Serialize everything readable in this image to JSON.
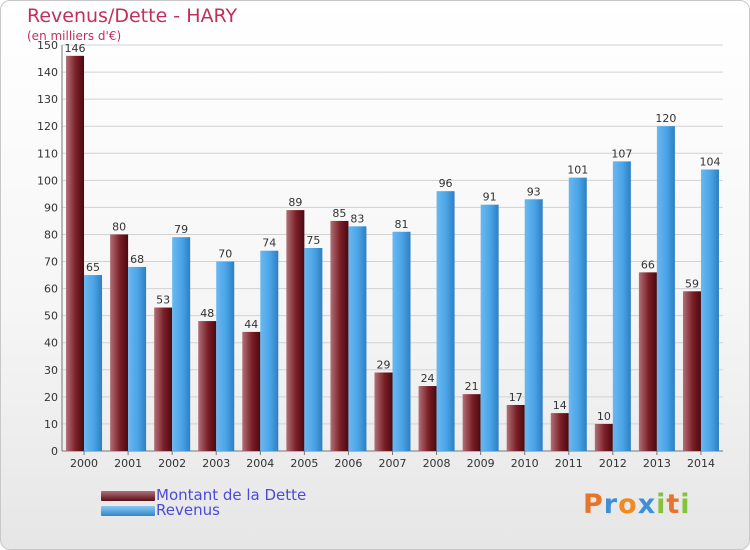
{
  "title": "Revenus/Dette - HARY",
  "subtitle": "(en milliers d'€)",
  "chart_data": {
    "type": "bar",
    "categories": [
      "2000",
      "2001",
      "2002",
      "2003",
      "2004",
      "2005",
      "2006",
      "2007",
      "2008",
      "2009",
      "2010",
      "2011",
      "2012",
      "2013",
      "2014"
    ],
    "series": [
      {
        "name": "Montant de la Dette",
        "values": [
          146,
          80,
          53,
          48,
          44,
          89,
          85,
          29,
          24,
          21,
          17,
          14,
          10,
          66,
          59
        ],
        "color": "#7a1e26"
      },
      {
        "name": "Revenus",
        "values": [
          65,
          68,
          79,
          70,
          74,
          75,
          83,
          81,
          96,
          91,
          93,
          101,
          107,
          120,
          104
        ],
        "color": "#4aa3e6"
      }
    ],
    "ylim": [
      0,
      150
    ],
    "yticks": [
      0,
      10,
      20,
      30,
      40,
      50,
      60,
      70,
      80,
      90,
      100,
      110,
      120,
      130,
      140,
      150
    ],
    "grid": true,
    "legend_position": "bottom-left"
  },
  "legend": [
    {
      "label": "Montant de la Dette",
      "color": "#7a1e26"
    },
    {
      "label": "Revenus",
      "color": "#4aa3e6"
    }
  ],
  "logo": {
    "letters": [
      "P",
      "r",
      "o",
      "x",
      "i",
      "t",
      "i"
    ],
    "colors": [
      "#e8742c",
      "#3f8fd6",
      "#ef8b23",
      "#3f8fd6",
      "#86c23c",
      "#e8742c",
      "#86c23c"
    ]
  }
}
